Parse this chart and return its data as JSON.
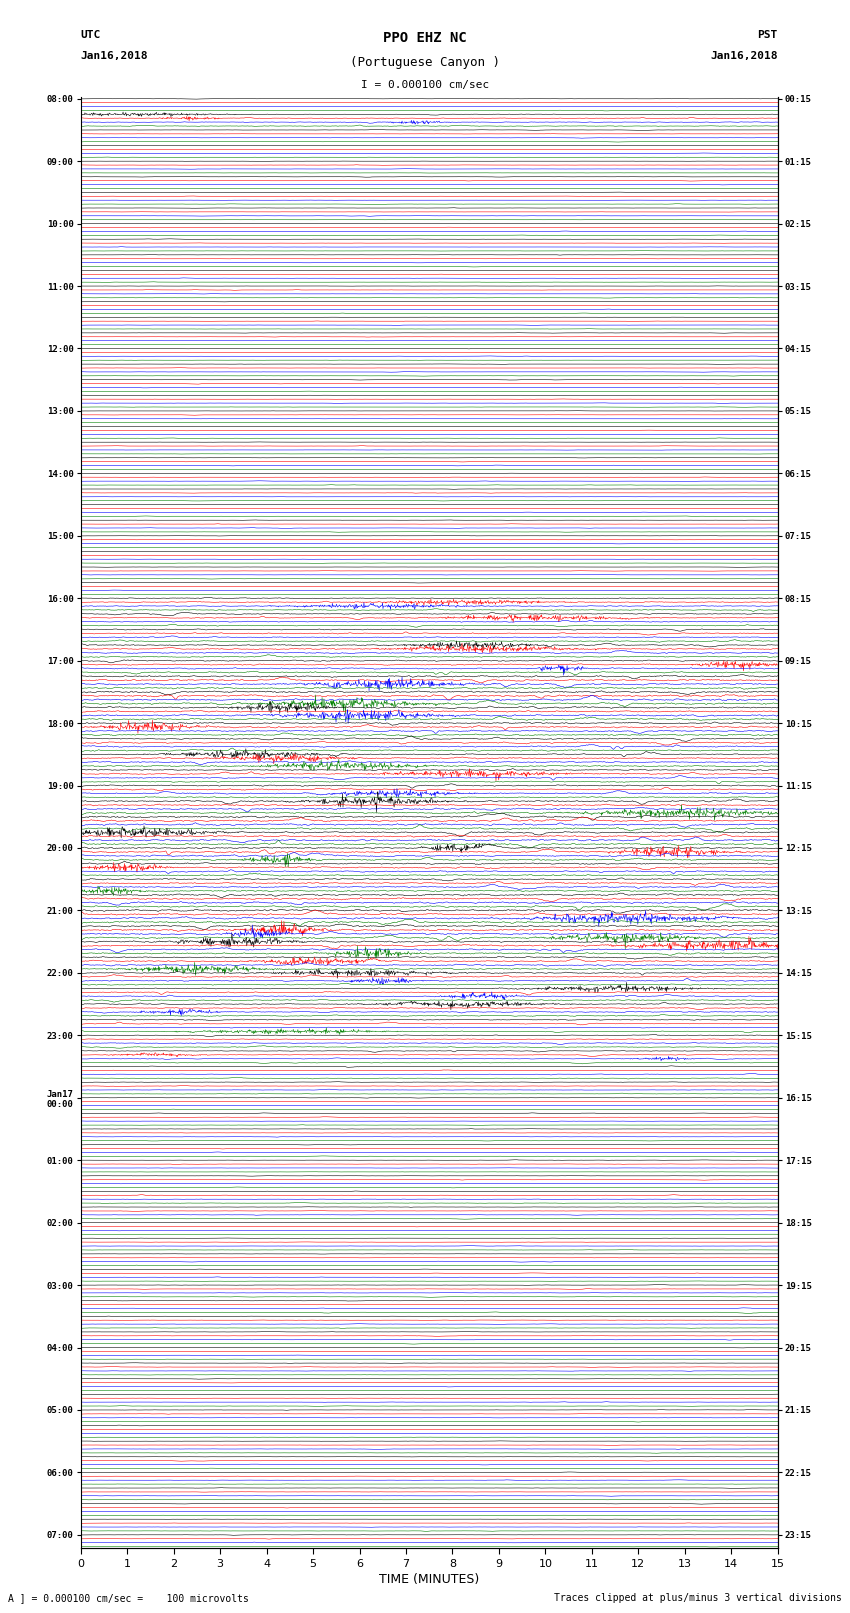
{
  "title_line1": "PPO EHZ NC",
  "title_line2": "(Portuguese Canyon )",
  "title_line3": "I = 0.000100 cm/sec",
  "utc_label": "UTC",
  "utc_date": "Jan16,2018",
  "pst_label": "PST",
  "pst_date": "Jan16,2018",
  "xlabel": "TIME (MINUTES)",
  "footer_left": "A ] = 0.000100 cm/sec =    100 microvolts",
  "footer_right": "Traces clipped at plus/minus 3 vertical divisions",
  "xlim": [
    0,
    15
  ],
  "xticks": [
    0,
    1,
    2,
    3,
    4,
    5,
    6,
    7,
    8,
    9,
    10,
    11,
    12,
    13,
    14,
    15
  ],
  "trace_colors": [
    "black",
    "red",
    "blue",
    "green"
  ],
  "background_color": "white",
  "n_rows": 93,
  "row_labels_left": [
    "08:00",
    "",
    "",
    "",
    "09:00",
    "",
    "",
    "",
    "10:00",
    "",
    "",
    "",
    "11:00",
    "",
    "",
    "",
    "12:00",
    "",
    "",
    "",
    "13:00",
    "",
    "",
    "",
    "14:00",
    "",
    "",
    "",
    "15:00",
    "",
    "",
    "",
    "16:00",
    "",
    "",
    "",
    "17:00",
    "",
    "",
    "",
    "18:00",
    "",
    "",
    "",
    "19:00",
    "",
    "",
    "",
    "20:00",
    "",
    "",
    "",
    "21:00",
    "",
    "",
    "",
    "22:00",
    "",
    "",
    "",
    "23:00",
    "",
    "",
    "",
    "Jan17\n00:00",
    "",
    "",
    "",
    "01:00",
    "",
    "",
    "",
    "02:00",
    "",
    "",
    "",
    "03:00",
    "",
    "",
    "",
    "04:00",
    "",
    "",
    "",
    "05:00",
    "",
    "",
    "",
    "06:00",
    "",
    "",
    "",
    "07:00",
    "",
    ""
  ],
  "row_labels_right": [
    "00:15",
    "",
    "",
    "",
    "01:15",
    "",
    "",
    "",
    "02:15",
    "",
    "",
    "",
    "03:15",
    "",
    "",
    "",
    "04:15",
    "",
    "",
    "",
    "05:15",
    "",
    "",
    "",
    "06:15",
    "",
    "",
    "",
    "07:15",
    "",
    "",
    "",
    "08:15",
    "",
    "",
    "",
    "09:15",
    "",
    "",
    "",
    "10:15",
    "",
    "",
    "",
    "11:15",
    "",
    "",
    "",
    "12:15",
    "",
    "",
    "",
    "13:15",
    "",
    "",
    "",
    "14:15",
    "",
    "",
    "",
    "15:15",
    "",
    "",
    "",
    "16:15",
    "",
    "",
    "",
    "17:15",
    "",
    "",
    "",
    "18:15",
    "",
    "",
    "",
    "19:15",
    "",
    "",
    "",
    "20:15",
    "",
    "",
    "",
    "21:15",
    "",
    "",
    "",
    "22:15",
    "",
    "",
    "",
    "23:15",
    "",
    ""
  ],
  "amp_by_row": [
    0.1,
    0.25,
    0.1,
    0.08,
    0.08,
    0.08,
    0.08,
    0.08,
    0.08,
    0.08,
    0.08,
    0.08,
    0.08,
    0.08,
    0.08,
    0.08,
    0.08,
    0.08,
    0.08,
    0.08,
    0.08,
    0.08,
    0.08,
    0.08,
    0.08,
    0.08,
    0.08,
    0.08,
    0.08,
    0.08,
    0.08,
    0.08,
    0.35,
    0.4,
    0.45,
    0.5,
    0.55,
    0.7,
    0.8,
    0.75,
    0.65,
    0.6,
    0.55,
    0.5,
    0.55,
    0.7,
    0.8,
    0.75,
    0.7,
    0.65,
    0.6,
    0.75,
    0.8,
    0.75,
    0.7,
    0.6,
    0.5,
    0.45,
    0.4,
    0.35,
    0.3,
    0.25,
    0.2,
    0.15,
    0.1,
    0.1,
    0.12,
    0.1,
    0.1,
    0.1,
    0.15,
    0.12,
    0.1,
    0.1,
    0.1,
    0.1,
    0.12,
    0.15,
    0.12,
    0.1,
    0.1,
    0.1,
    0.1,
    0.1,
    0.1,
    0.1,
    0.1,
    0.1,
    0.1,
    0.1,
    0.1,
    0.1,
    0.1
  ]
}
